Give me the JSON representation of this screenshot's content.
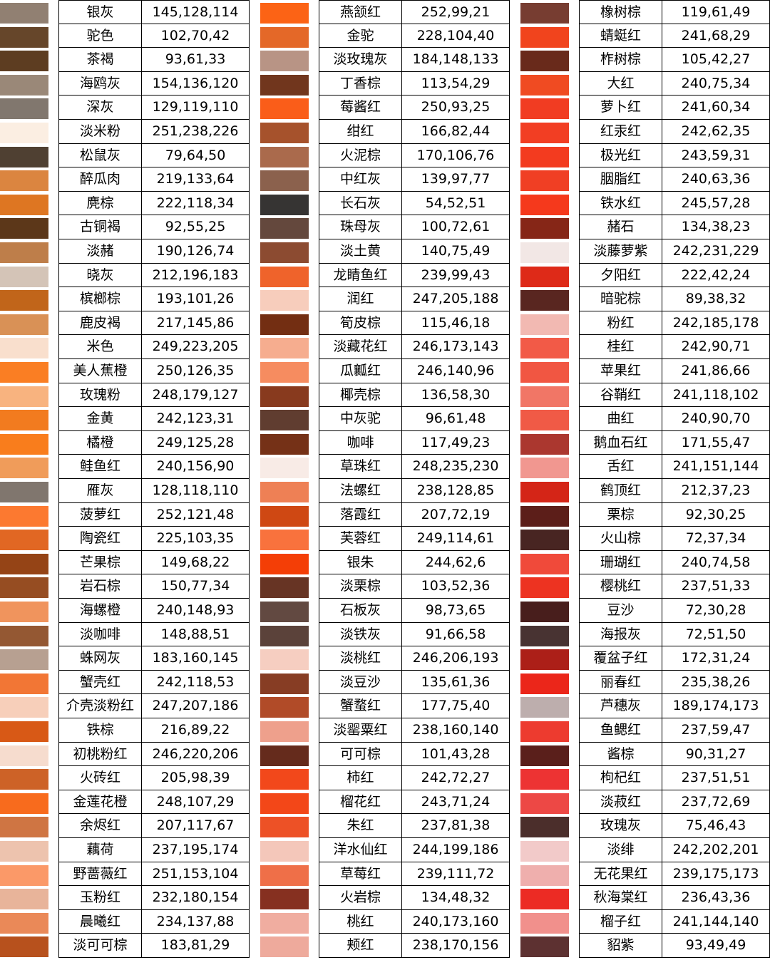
{
  "columns": [
    {
      "rows": [
        {
          "name": "银灰",
          "rgb": "145,128,114",
          "color": "#918072"
        },
        {
          "name": "驼色",
          "rgb": "102,70,42",
          "color": "#66462A"
        },
        {
          "name": "茶褐",
          "rgb": "93,61,33",
          "color": "#5D3D21"
        },
        {
          "name": "海鸥灰",
          "rgb": "154,136,120",
          "color": "#9A8878"
        },
        {
          "name": "深灰",
          "rgb": "129,119,110",
          "color": "#81776E"
        },
        {
          "name": "淡米粉",
          "rgb": "251,238,226",
          "color": "#FBEEE2"
        },
        {
          "name": "松鼠灰",
          "rgb": "79,64,50",
          "color": "#4F4032"
        },
        {
          "name": "醉瓜肉",
          "rgb": "219,133,64",
          "color": "#DB8540"
        },
        {
          "name": "麂棕",
          "rgb": "222,118,34",
          "color": "#DE7622"
        },
        {
          "name": "古铜褐",
          "rgb": "92,55,25",
          "color": "#5C3719"
        },
        {
          "name": "淡赭",
          "rgb": "190,126,74",
          "color": "#BE7E4A"
        },
        {
          "name": "晓灰",
          "rgb": "212,196,183",
          "color": "#D4C4B7"
        },
        {
          "name": "槟榔棕",
          "rgb": "193,101,26",
          "color": "#C1651A"
        },
        {
          "name": "鹿皮褐",
          "rgb": "217,145,86",
          "color": "#D99156"
        },
        {
          "name": "米色",
          "rgb": "249,223,205",
          "color": "#F9DFCD"
        },
        {
          "name": "美人蕉橙",
          "rgb": "250,126,35",
          "color": "#FA7E23"
        },
        {
          "name": "玫瑰粉",
          "rgb": "248,179,127",
          "color": "#F8B37F"
        },
        {
          "name": "金黄",
          "rgb": "242,123,31",
          "color": "#F27B1F"
        },
        {
          "name": "橘橙",
          "rgb": "249,125,28",
          "color": "#F97D1C"
        },
        {
          "name": "鲑鱼红",
          "rgb": "240,156,90",
          "color": "#F09C5A"
        },
        {
          "name": "雁灰",
          "rgb": "128,118,110",
          "color": "#80766E"
        },
        {
          "name": "菠萝红",
          "rgb": "252,121,48",
          "color": "#FC7930"
        },
        {
          "name": "陶瓷红",
          "rgb": "225,103,35",
          "color": "#E16723"
        },
        {
          "name": "芒果棕",
          "rgb": "149,68,22",
          "color": "#954416"
        },
        {
          "name": "岩石棕",
          "rgb": "150,77,34",
          "color": "#964D22"
        },
        {
          "name": "海螺橙",
          "rgb": "240,148,93",
          "color": "#F0945D"
        },
        {
          "name": "淡咖啡",
          "rgb": "148,88,51",
          "color": "#945833"
        },
        {
          "name": "蛛网灰",
          "rgb": "183,160,145",
          "color": "#B7A091"
        },
        {
          "name": "蟹壳红",
          "rgb": "242,118,53",
          "color": "#F27635"
        },
        {
          "name": "介壳淡粉红",
          "rgb": "247,207,186",
          "color": "#F7CFBA"
        },
        {
          "name": "铁棕",
          "rgb": "216,89,22",
          "color": "#D85916"
        },
        {
          "name": "初桃粉红",
          "rgb": "246,220,206",
          "color": "#F6DCCE"
        },
        {
          "name": "火砖红",
          "rgb": "205,98,39",
          "color": "#CD6227"
        },
        {
          "name": "金莲花橙",
          "rgb": "248,107,29",
          "color": "#F86B1D"
        },
        {
          "name": "余烬红",
          "rgb": "207,117,67",
          "color": "#CF7543"
        },
        {
          "name": "藕荷",
          "rgb": "237,195,174",
          "color": "#EDC3AE"
        },
        {
          "name": "野蔷薇红",
          "rgb": "251,153,104",
          "color": "#FB9968"
        },
        {
          "name": "玉粉红",
          "rgb": "232,180,154",
          "color": "#E8B49A"
        },
        {
          "name": "晨曦红",
          "rgb": "234,137,88",
          "color": "#EA8958"
        },
        {
          "name": "淡可可棕",
          "rgb": "183,81,29",
          "color": "#B7511D"
        }
      ]
    },
    {
      "rows": [
        {
          "name": "燕颔红",
          "rgb": "252,99,21",
          "color": "#FC6315"
        },
        {
          "name": "金驼",
          "rgb": "228,104,40",
          "color": "#E46828"
        },
        {
          "name": "淡玫瑰灰",
          "rgb": "184,148,133",
          "color": "#B89485"
        },
        {
          "name": "丁香棕",
          "rgb": "113,54,29",
          "color": "#71361D"
        },
        {
          "name": "莓酱红",
          "rgb": "250,93,25",
          "color": "#FA5D19"
        },
        {
          "name": "绀红",
          "rgb": "166,82,44",
          "color": "#A6522C"
        },
        {
          "name": "火泥棕",
          "rgb": "170,106,76",
          "color": "#AA6A4C"
        },
        {
          "name": "中红灰",
          "rgb": "139,97,77",
          "color": "#8B614D"
        },
        {
          "name": "长石灰",
          "rgb": "54,52,51",
          "color": "#363433"
        },
        {
          "name": "珠母灰",
          "rgb": "100,72,61",
          "color": "#64483D"
        },
        {
          "name": "淡土黄",
          "rgb": "140,75,49",
          "color": "#8C4B31"
        },
        {
          "name": "龙睛鱼红",
          "rgb": "239,99,43",
          "color": "#EF632B"
        },
        {
          "name": "润红",
          "rgb": "247,205,188",
          "color": "#F7CDBC"
        },
        {
          "name": "筍皮棕",
          "rgb": "115,46,18",
          "color": "#732E12"
        },
        {
          "name": "淡藏花红",
          "rgb": "246,173,143",
          "color": "#F6AD8F"
        },
        {
          "name": "瓜瓤红",
          "rgb": "246,140,96",
          "color": "#F68C60"
        },
        {
          "name": "椰壳棕",
          "rgb": "136,58,30",
          "color": "#883A1E"
        },
        {
          "name": "中灰驼",
          "rgb": "96,61,48",
          "color": "#603D30"
        },
        {
          "name": "咖啡",
          "rgb": "117,49,23",
          "color": "#753117"
        },
        {
          "name": "草珠红",
          "rgb": "248,235,230",
          "color": "#F8EBE6"
        },
        {
          "name": "法螺红",
          "rgb": "238,128,85",
          "color": "#EE8055"
        },
        {
          "name": "落霞红",
          "rgb": "207,72,19",
          "color": "#CF4813"
        },
        {
          "name": "芙蓉红",
          "rgb": "249,114,61",
          "color": "#F9723D"
        },
        {
          "name": "银朱",
          "rgb": "244,62,6",
          "color": "#F43E06"
        },
        {
          "name": "淡栗棕",
          "rgb": "103,52,36",
          "color": "#673424"
        },
        {
          "name": "石板灰",
          "rgb": "98,73,65",
          "color": "#624941"
        },
        {
          "name": "淡铁灰",
          "rgb": "91,66,58",
          "color": "#5B423A"
        },
        {
          "name": "淡桃红",
          "rgb": "246,206,193",
          "color": "#F6CEC1"
        },
        {
          "name": "淡豆沙",
          "rgb": "135,61,36",
          "color": "#873D24"
        },
        {
          "name": "蟹蝥红",
          "rgb": "177,75,40",
          "color": "#B14B28"
        },
        {
          "name": "淡罂粟红",
          "rgb": "238,160,140",
          "color": "#EEA08C"
        },
        {
          "name": "可可棕",
          "rgb": "101,43,28",
          "color": "#652B1C"
        },
        {
          "name": "柿红",
          "rgb": "242,72,27",
          "color": "#F2481B"
        },
        {
          "name": "榴花红",
          "rgb": "243,71,24",
          "color": "#F34718"
        },
        {
          "name": "朱红",
          "rgb": "237,81,38",
          "color": "#ED5126"
        },
        {
          "name": "洋水仙红",
          "rgb": "244,199,186",
          "color": "#F4C7BA"
        },
        {
          "name": "草莓红",
          "rgb": "239,111,72",
          "color": "#EF6F48"
        },
        {
          "name": "火岩棕",
          "rgb": "134,48,32",
          "color": "#863020"
        },
        {
          "name": "桃红",
          "rgb": "240,173,160",
          "color": "#F0ADA0"
        },
        {
          "name": "颊红",
          "rgb": "238,170,156",
          "color": "#EEAA9C"
        }
      ]
    },
    {
      "rows": [
        {
          "name": "橡树棕",
          "rgb": "119,61,49",
          "color": "#773D31"
        },
        {
          "name": "蜻蜓红",
          "rgb": "241,68,29",
          "color": "#F1441D"
        },
        {
          "name": "柞树棕",
          "rgb": "105,42,27",
          "color": "#692A1B"
        },
        {
          "name": "大红",
          "rgb": "240,75,34",
          "color": "#F04B22"
        },
        {
          "name": "萝卜红",
          "rgb": "241,60,34",
          "color": "#F13C22"
        },
        {
          "name": "红汞红",
          "rgb": "242,62,35",
          "color": "#F23E23"
        },
        {
          "name": "极光红",
          "rgb": "243,59,31",
          "color": "#F33B1F"
        },
        {
          "name": "胭脂红",
          "rgb": "240,63,36",
          "color": "#F03F24"
        },
        {
          "name": "铁水红",
          "rgb": "245,57,28",
          "color": "#F5391C"
        },
        {
          "name": "赭石",
          "rgb": "134,38,23",
          "color": "#862617"
        },
        {
          "name": "淡藤萝紫",
          "rgb": "242,231,229",
          "color": "#F2E7E5"
        },
        {
          "name": "夕阳红",
          "rgb": "222,42,24",
          "color": "#DE2A18"
        },
        {
          "name": "暗驼棕",
          "rgb": "89,38,32",
          "color": "#592620"
        },
        {
          "name": "粉红",
          "rgb": "242,185,178",
          "color": "#F2B9B2"
        },
        {
          "name": "桂红",
          "rgb": "242,90,71",
          "color": "#F25A47"
        },
        {
          "name": "苹果红",
          "rgb": "241,86,66",
          "color": "#F15642"
        },
        {
          "name": "谷鞘红",
          "rgb": "241,118,102",
          "color": "#F17666"
        },
        {
          "name": "曲红",
          "rgb": "240,90,70",
          "color": "#F05A46"
        },
        {
          "name": "鹅血石红",
          "rgb": "171,55,47",
          "color": "#AB372F"
        },
        {
          "name": "舌红",
          "rgb": "241,151,144",
          "color": "#F19790"
        },
        {
          "name": "鹤顶红",
          "rgb": "212,37,23",
          "color": "#D42517"
        },
        {
          "name": "栗棕",
          "rgb": "92,30,25",
          "color": "#5C1E19"
        },
        {
          "name": "火山棕",
          "rgb": "72,37,34",
          "color": "#482522"
        },
        {
          "name": "珊瑚红",
          "rgb": "240,74,58",
          "color": "#F04A3A"
        },
        {
          "name": "樱桃红",
          "rgb": "237,51,33",
          "color": "#ED3321"
        },
        {
          "name": "豆沙",
          "rgb": "72,30,28",
          "color": "#481E1C"
        },
        {
          "name": "海报灰",
          "rgb": "72,51,50",
          "color": "#483332"
        },
        {
          "name": "覆盆子红",
          "rgb": "172,31,24",
          "color": "#AC1F18"
        },
        {
          "name": "丽春红",
          "rgb": "235,38,26",
          "color": "#EB261A"
        },
        {
          "name": "芦穗灰",
          "rgb": "189,174,173",
          "color": "#BDAEAD"
        },
        {
          "name": "鱼鳃红",
          "rgb": "237,59,47",
          "color": "#ED3B2F"
        },
        {
          "name": "酱棕",
          "rgb": "90,31,27",
          "color": "#5A1F1B"
        },
        {
          "name": "枸杞红",
          "rgb": "237,51,51",
          "color": "#ED3333"
        },
        {
          "name": "淡菽红",
          "rgb": "237,72,69",
          "color": "#ED4845"
        },
        {
          "name": "玫瑰灰",
          "rgb": "75,46,43",
          "color": "#4B2E2B"
        },
        {
          "name": "淡绯",
          "rgb": "242,202,201",
          "color": "#F2CAC9"
        },
        {
          "name": "无花果红",
          "rgb": "239,175,173",
          "color": "#EFAFAD"
        },
        {
          "name": "秋海棠红",
          "rgb": "236,43,36",
          "color": "#EC2B24"
        },
        {
          "name": "榴子红",
          "rgb": "241,144,140",
          "color": "#F1908C"
        },
        {
          "name": "貂紫",
          "rgb": "93,49,49",
          "color": "#5D3131"
        }
      ]
    }
  ]
}
